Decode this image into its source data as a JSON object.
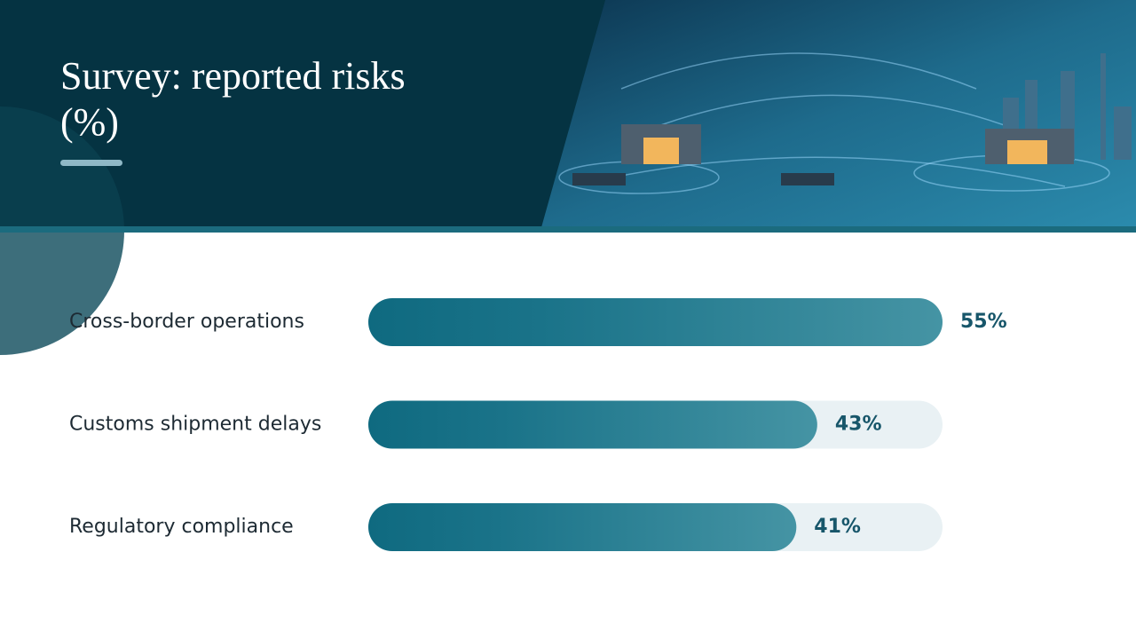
{
  "chart_data": {
    "type": "bar",
    "title": "Survey: reported risks (%)",
    "categories": [
      "Cross-border operations",
      "Customs shipment delays",
      "Regulatory compliance"
    ],
    "values": [
      55,
      43,
      41
    ],
    "value_labels": [
      "55%",
      "43%",
      "41%"
    ],
    "color": "#1a7389",
    "xlim": [
      0,
      55
    ]
  }
}
